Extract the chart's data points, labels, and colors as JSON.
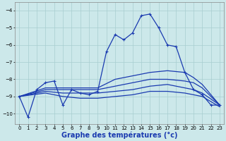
{
  "background_color": "#cce8ea",
  "xlabel": "Graphe des températures (°c)",
  "xlabel_fontsize": 7,
  "xlim": [
    -0.5,
    23.5
  ],
  "ylim": [
    -10.6,
    -3.5
  ],
  "yticks": [
    -10,
    -9,
    -8,
    -7,
    -6,
    -5,
    -4
  ],
  "xticks": [
    0,
    1,
    2,
    3,
    4,
    5,
    6,
    7,
    8,
    9,
    10,
    11,
    12,
    13,
    14,
    15,
    16,
    17,
    18,
    19,
    20,
    21,
    22,
    23
  ],
  "grid_color": "#a8cdd0",
  "line_color": "#1a3ab0",
  "lines": [
    {
      "x": [
        0,
        1,
        2,
        3,
        4,
        5,
        6,
        7,
        8,
        9,
        10,
        11,
        12,
        13,
        14,
        15,
        16,
        17,
        18,
        19,
        20,
        21,
        22,
        23
      ],
      "y": [
        -9.0,
        -10.2,
        -8.6,
        -8.2,
        -8.1,
        -9.5,
        -8.6,
        -8.8,
        -8.9,
        -8.7,
        -6.4,
        -5.4,
        -5.7,
        -5.3,
        -4.3,
        -4.2,
        -5.0,
        -6.0,
        -6.1,
        -7.6,
        -8.6,
        -8.9,
        -9.5,
        -9.5
      ],
      "marker": "+",
      "lw": 0.9
    },
    {
      "x": [
        0,
        3,
        5,
        7,
        9,
        11,
        13,
        15,
        17,
        19,
        20,
        21,
        23
      ],
      "y": [
        -9.0,
        -8.5,
        -8.5,
        -8.5,
        -8.5,
        -8.0,
        -7.8,
        -7.6,
        -7.5,
        -7.6,
        -7.9,
        -8.3,
        -9.5
      ],
      "marker": null,
      "lw": 0.9
    },
    {
      "x": [
        0,
        3,
        5,
        7,
        9,
        11,
        13,
        15,
        17,
        19,
        20,
        21,
        23
      ],
      "y": [
        -9.0,
        -8.6,
        -8.6,
        -8.6,
        -8.6,
        -8.4,
        -8.2,
        -8.0,
        -8.0,
        -8.1,
        -8.2,
        -8.5,
        -9.5
      ],
      "marker": null,
      "lw": 0.9
    },
    {
      "x": [
        0,
        3,
        5,
        7,
        9,
        11,
        13,
        15,
        17,
        19,
        20,
        21,
        23
      ],
      "y": [
        -9.0,
        -8.7,
        -8.8,
        -8.8,
        -8.8,
        -8.7,
        -8.6,
        -8.4,
        -8.3,
        -8.5,
        -8.6,
        -8.8,
        -9.5
      ],
      "marker": null,
      "lw": 0.9
    },
    {
      "x": [
        0,
        3,
        5,
        7,
        9,
        11,
        13,
        15,
        17,
        19,
        20,
        21,
        23
      ],
      "y": [
        -9.0,
        -8.8,
        -9.0,
        -9.1,
        -9.1,
        -9.0,
        -8.9,
        -8.7,
        -8.7,
        -8.8,
        -8.9,
        -9.0,
        -9.6
      ],
      "marker": null,
      "lw": 0.9
    }
  ]
}
